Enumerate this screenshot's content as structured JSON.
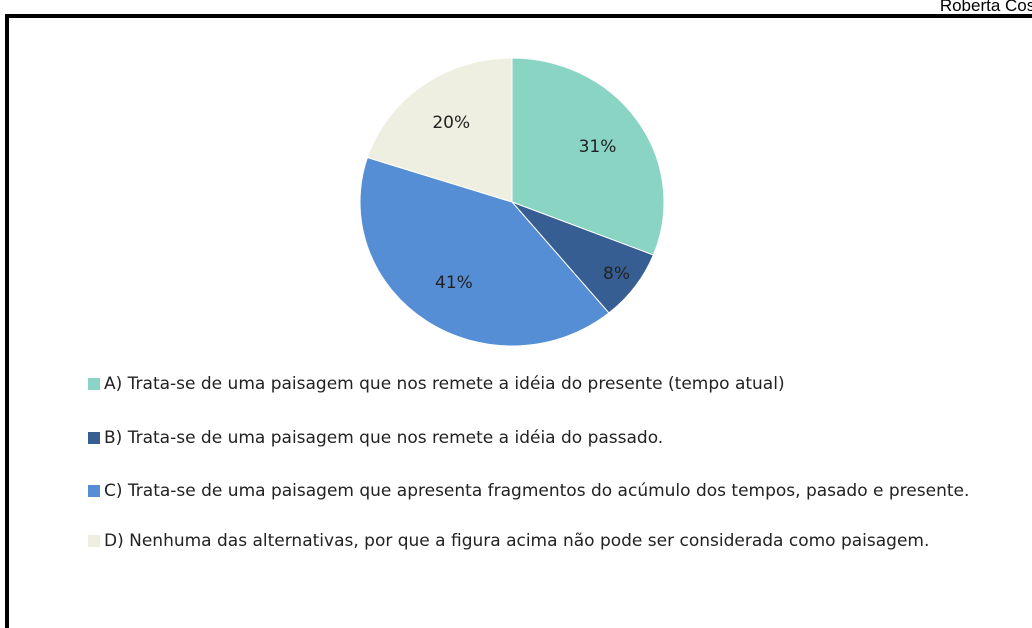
{
  "author": "Roberta Cost",
  "chart_data": {
    "type": "pie",
    "categories": [
      "A) Trata-se de uma paisagem que nos remete a idéia do presente (tempo atual)",
      "B) Trata-se de uma paisagem que nos remete a idéia do passado.",
      "C) Trata-se de uma paisagem que apresenta fragmentos do acúmulo dos tempos, pasado e presente.",
      "D) Nenhuma das alternativas, por que a figura acima não pode ser considerada como paisagem."
    ],
    "values": [
      31,
      8,
      41,
      20
    ],
    "value_labels": [
      "31%",
      "8%",
      "41%",
      "20%"
    ],
    "colors": [
      "#8ad4c4",
      "#375e93",
      "#558ed5",
      "#eeefe0"
    ],
    "legend": "bottom"
  }
}
